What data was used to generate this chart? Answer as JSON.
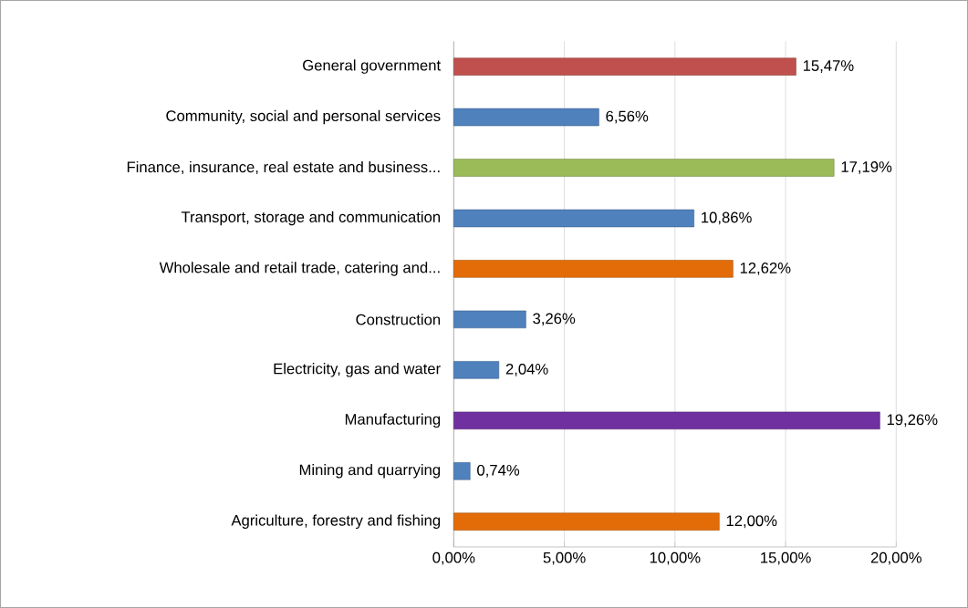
{
  "chart_data": {
    "type": "bar",
    "orientation": "horizontal",
    "categories": [
      "General government",
      "Community, social and personal services",
      "Finance, insurance, real estate and business...",
      "Transport, storage and communication",
      "Wholesale and retail trade, catering and...",
      "Construction",
      "Electricity, gas and water",
      "Manufacturing",
      "Mining and quarrying",
      "Agriculture, forestry and fishing"
    ],
    "values": [
      15.47,
      6.56,
      17.19,
      10.86,
      12.62,
      3.26,
      2.04,
      19.26,
      0.74,
      12.0
    ],
    "value_labels": [
      "15,47%",
      "6,56%",
      "17,19%",
      "10,86%",
      "12,62%",
      "3,26%",
      "2,04%",
      "19,26%",
      "0,74%",
      "12,00%"
    ],
    "colors": [
      "#c0504d",
      "#4f81bd",
      "#9bbb59",
      "#4f81bd",
      "#e36c09",
      "#4f81bd",
      "#4f81bd",
      "#7030a0",
      "#4f81bd",
      "#e36c09"
    ],
    "xlim": [
      0,
      20
    ],
    "xticks": [
      {
        "value": 0,
        "label": "0,00%"
      },
      {
        "value": 5,
        "label": "5,00%"
      },
      {
        "value": 10,
        "label": "10,00%"
      },
      {
        "value": 15,
        "label": "15,00%"
      },
      {
        "value": 20,
        "label": "20,00%"
      }
    ],
    "grid": "x"
  }
}
